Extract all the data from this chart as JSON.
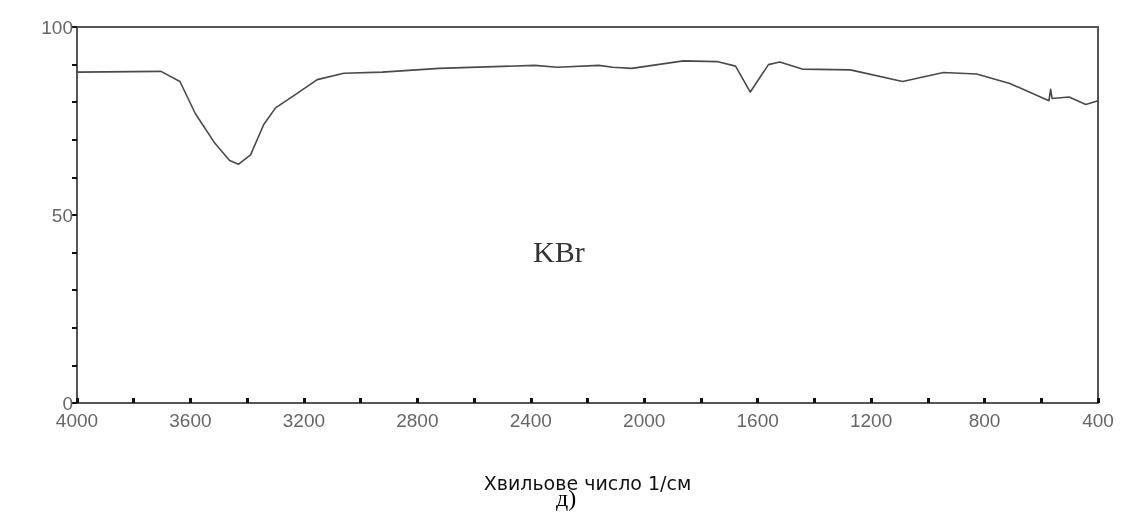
{
  "chart_data": {
    "type": "line",
    "xlabel": "Хвильове число 1/см",
    "annotations": [
      "KBr",
      "д)"
    ],
    "xlim": [
      4000,
      400
    ],
    "xticks": [
      4000,
      {
        "value": 3800,
        "label": null
      },
      3600,
      {
        "value": 3400,
        "label": null
      },
      3200,
      {
        "value": 3000,
        "label": null
      },
      2800,
      {
        "value": 2600,
        "label": null
      },
      2400,
      {
        "value": 2200,
        "label": null
      },
      2000,
      {
        "value": 1800,
        "label": null
      },
      1600,
      {
        "value": 1400,
        "label": null
      },
      1200,
      {
        "value": 1000,
        "label": null
      },
      800,
      {
        "value": 600,
        "label": null
      },
      400
    ],
    "ylim": [
      0,
      100
    ],
    "yticks": [
      0,
      {
        "value": 10,
        "label": null
      },
      {
        "value": 20,
        "label": null
      },
      {
        "value": 30,
        "label": null
      },
      {
        "value": 40,
        "label": null
      },
      50,
      {
        "value": 60,
        "label": null
      },
      {
        "value": 70,
        "label": null
      },
      {
        "value": 80,
        "label": null
      },
      {
        "value": 90,
        "label": null
      },
      100
    ],
    "grid": false,
    "marker": "none",
    "line_style": "solid",
    "series": [
      {
        "color": "#4a4a4a",
        "x": [
          4000,
          3704,
          3637,
          3583,
          3516,
          3462,
          3430,
          3388,
          3342,
          3300,
          3234,
          3153,
          3059,
          2924,
          2723,
          2387,
          2305,
          2160,
          2111,
          2044,
          1862,
          1743,
          1678,
          1626,
          1562,
          1522,
          1443,
          1273,
          1089,
          945,
          828,
          711,
          573,
          567,
          562,
          502,
          443,
          400
        ],
        "values": [
          88,
          88.2,
          85.5,
          77,
          69.3,
          64.5,
          63.5,
          66,
          74,
          78.5,
          81.8,
          86,
          87.7,
          88,
          89,
          89.8,
          89.3,
          89.8,
          89.3,
          89,
          91,
          90.8,
          89.6,
          82.7,
          90,
          90.7,
          88.8,
          88.6,
          85.5,
          87.9,
          87.5,
          85,
          80.4,
          83.4,
          81,
          81.4,
          79.4,
          80.4
        ]
      }
    ]
  }
}
